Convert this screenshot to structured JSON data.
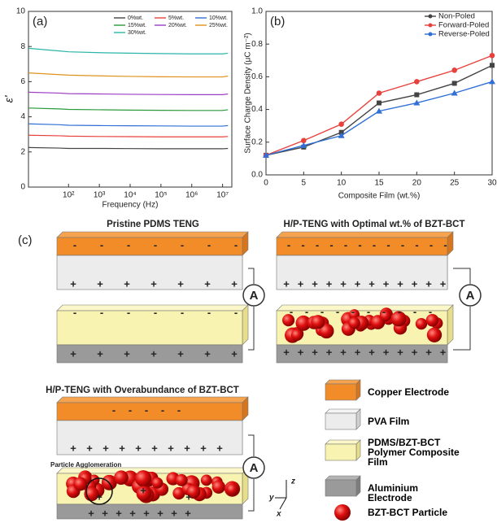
{
  "chart_data": [
    {
      "type": "line",
      "panel_label": "(a)",
      "x_label": "Frequency (Hz)",
      "y_label": "ε'",
      "log_x": true,
      "x": [
        5,
        50,
        100,
        1000,
        10000,
        100000,
        1000000,
        10000000,
        15000000
      ],
      "xlim": [
        5,
        20000000
      ],
      "ylim": [
        0,
        10
      ],
      "xticks": [
        {
          "value": 100,
          "label": "10²"
        },
        {
          "value": 1000,
          "label": "10³"
        },
        {
          "value": 10000,
          "label": "10⁴"
        },
        {
          "value": 100000,
          "label": "10⁵"
        },
        {
          "value": 1000000,
          "label": "10⁶"
        },
        {
          "value": 10000000,
          "label": "10⁷"
        }
      ],
      "yticks": [
        0,
        2,
        4,
        6,
        8,
        10
      ],
      "series": [
        {
          "name": "0%wt.",
          "color": "#444444",
          "values": [
            2.25,
            2.22,
            2.2,
            2.2,
            2.19,
            2.18,
            2.18,
            2.18,
            2.2
          ]
        },
        {
          "name": "5%wt.",
          "color": "#e8413c",
          "values": [
            2.95,
            2.92,
            2.9,
            2.88,
            2.87,
            2.86,
            2.86,
            2.86,
            2.88
          ]
        },
        {
          "name": "10%wt.",
          "color": "#2f6fd6",
          "values": [
            3.6,
            3.55,
            3.52,
            3.5,
            3.49,
            3.48,
            3.47,
            3.47,
            3.5
          ]
        },
        {
          "name": "15%wt.",
          "color": "#2a9a3a",
          "values": [
            4.5,
            4.45,
            4.42,
            4.4,
            4.38,
            4.37,
            4.36,
            4.36,
            4.4
          ]
        },
        {
          "name": "20%wt.",
          "color": "#9b3fc4",
          "values": [
            5.4,
            5.35,
            5.32,
            5.3,
            5.28,
            5.27,
            5.26,
            5.26,
            5.3
          ]
        },
        {
          "name": "25%wt.",
          "color": "#e0921c",
          "values": [
            6.5,
            6.4,
            6.37,
            6.33,
            6.3,
            6.28,
            6.27,
            6.27,
            6.32
          ]
        },
        {
          "name": "30%wt.",
          "color": "#2ab5a8",
          "values": [
            7.9,
            7.75,
            7.7,
            7.65,
            7.62,
            7.6,
            7.58,
            7.58,
            7.62
          ]
        }
      ]
    },
    {
      "type": "line",
      "panel_label": "(b)",
      "x_label": "Composite Film (wt.%)",
      "y_label": "Surface Charge Density (μC m⁻²)",
      "x": [
        0,
        5,
        10,
        15,
        20,
        25,
        30
      ],
      "xlim": [
        0,
        30
      ],
      "ylim": [
        0,
        1
      ],
      "xticks": [
        0,
        5,
        10,
        15,
        20,
        25,
        30
      ],
      "yticks": [
        {
          "value": 0,
          "label": "0.0"
        },
        0.2,
        0.4,
        0.6,
        0.8,
        {
          "value": 1,
          "label": "1.0"
        }
      ],
      "legend": "upper right",
      "series": [
        {
          "name": "Non-Poled",
          "color": "#444444",
          "marker": "square",
          "values": [
            0.12,
            0.17,
            0.26,
            0.44,
            0.49,
            0.56,
            0.67
          ]
        },
        {
          "name": "Forward-Poled",
          "color": "#e8413c",
          "marker": "circle",
          "values": [
            0.12,
            0.21,
            0.31,
            0.5,
            0.57,
            0.64,
            0.73
          ]
        },
        {
          "name": "Reverse-Poled",
          "color": "#2f6fd6",
          "marker": "triangle",
          "values": [
            0.12,
            0.18,
            0.24,
            0.39,
            0.44,
            0.5,
            0.57
          ]
        }
      ]
    }
  ],
  "diagram": {
    "panel_label": "(c)",
    "titles": [
      "Pristine PDMS TENG",
      "H/P-TENG with Optimal wt.% of BZT-BCT",
      "H/P-TENG with Overabundance of BZT-BCT"
    ],
    "annotation": "Particle Agglomeration",
    "ammeter": "A",
    "signs": {
      "minus": "-",
      "plus": "+"
    },
    "axes": {
      "z": "z",
      "y": "y",
      "x": "x"
    },
    "legend": [
      "Copper Electrode",
      "PVA Film",
      "PDMS/BZT-BCT Polymer Composite Film",
      "Aluminium Electrode",
      "BZT-BCT Particle"
    ]
  }
}
